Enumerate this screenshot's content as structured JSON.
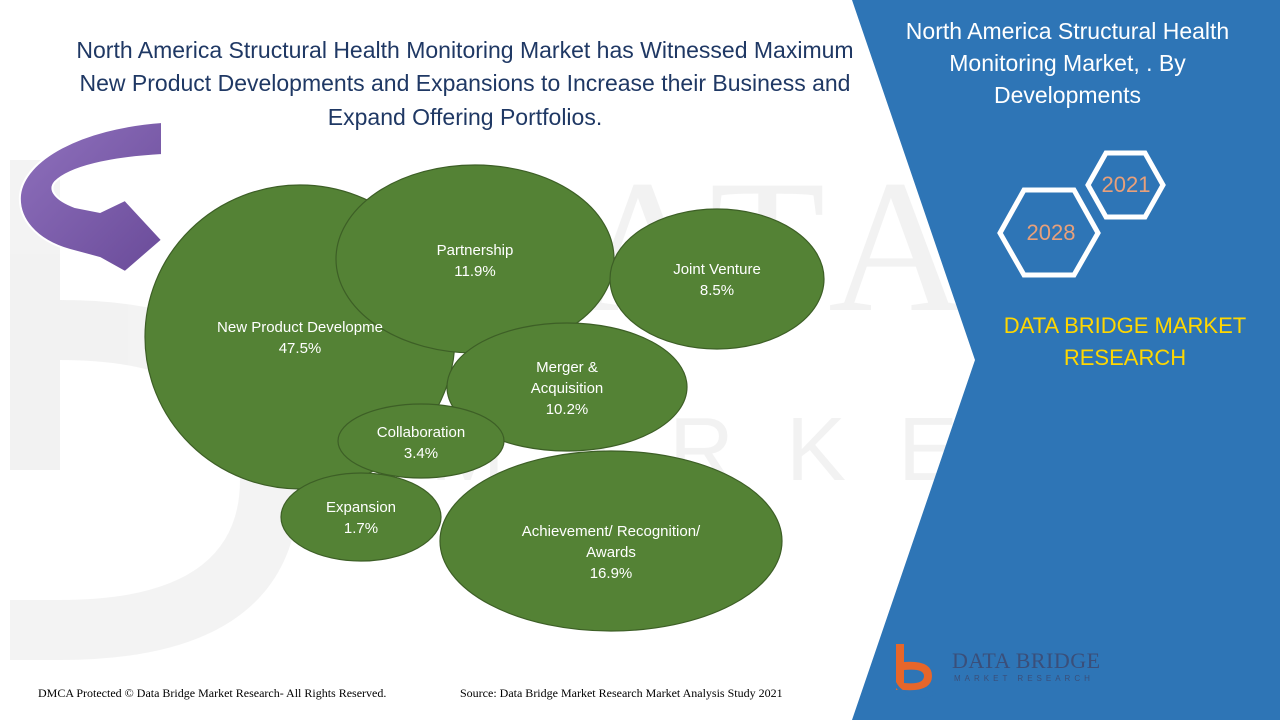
{
  "title": "North America Structural Health Monitoring Market has Witnessed Maximum New Product Developments and Expansions to Increase their Business and Expand Offering Portfolios.",
  "panel": {
    "title": "North America Structural Health Monitoring Market, . By Developments",
    "year_start": "2021",
    "year_end": "2028",
    "brand": "DATA BRIDGE MARKET RESEARCH"
  },
  "logo": {
    "name": "DATA BRIDGE",
    "subtitle": "MARKET RESEARCH"
  },
  "footer": {
    "copyright": "DMCA Protected © Data Bridge Market Research- All Rights Reserved.",
    "source": "Source: Data Bridge Market Research Market Analysis Study 2021"
  },
  "colors": {
    "bubble_fill": "#548235",
    "bubble_stroke": "#3d5f26",
    "panel_blue": "#2e75b6",
    "title_navy": "#1f3864",
    "brand_yellow": "#ffd700",
    "arrow_purple": "#7b5ba8"
  },
  "chart_data": {
    "type": "bubble",
    "unit": "%",
    "items": [
      {
        "label": "New Product Developme",
        "value": 47.5,
        "value_label": "47.5%"
      },
      {
        "label": "Achievement/ Recognition/ Awards",
        "value": 16.9,
        "value_label": "16.9%"
      },
      {
        "label": "Partnership",
        "value": 11.9,
        "value_label": "11.9%"
      },
      {
        "label": "Merger & Acquisition",
        "value": 10.2,
        "value_label": "10.2%"
      },
      {
        "label": "Joint Venture",
        "value": 8.5,
        "value_label": "8.5%"
      },
      {
        "label": "Collaboration",
        "value": 3.4,
        "value_label": "3.4%"
      },
      {
        "label": "Expansion",
        "value": 1.7,
        "value_label": "1.7%"
      }
    ]
  }
}
